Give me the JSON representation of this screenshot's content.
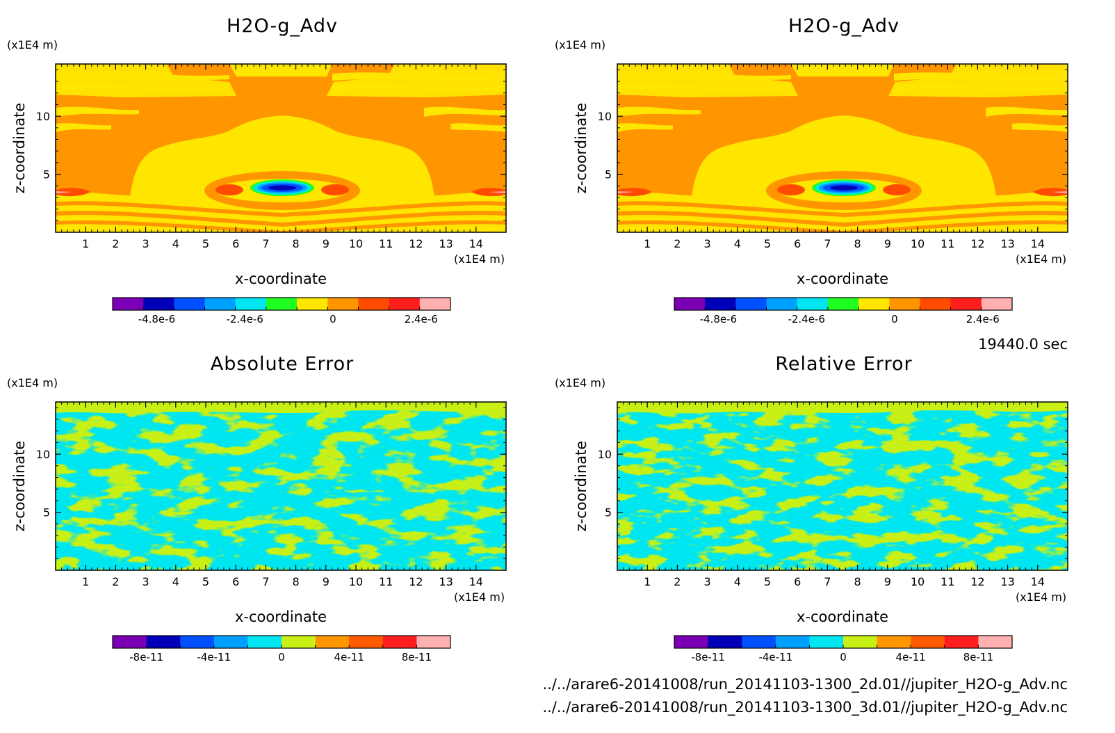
{
  "chart_data": [
    {
      "type": "heatmap",
      "panel": "top-left",
      "title": "H2O-g_Adv",
      "xlabel": "x-coordinate",
      "ylabel": "z-coordinate",
      "x_unit": "(x1E4 m)",
      "y_unit": "(x1E4 m)",
      "x_ticks": [
        "1",
        "2",
        "3",
        "4",
        "5",
        "6",
        "7",
        "8",
        "9",
        "10",
        "11",
        "12",
        "13",
        "14"
      ],
      "y_ticks": [
        "5",
        "10"
      ],
      "xlim": [
        0,
        15
      ],
      "ylim": [
        0,
        14.5
      ],
      "colorbar": {
        "colors": [
          "#7B00B5",
          "#0000B8",
          "#0050FF",
          "#00A0FF",
          "#00E6F0",
          "#20FF20",
          "#FFE600",
          "#FF9600",
          "#FF4B00",
          "#FF1E1E",
          "#FFB0B0"
        ],
        "tick_labels": [
          "-4.8e-6",
          "-2.4e-6",
          "0",
          "2.4e-6"
        ],
        "tick_values": [
          -4.8e-06,
          -2.4e-06,
          0,
          2.4e-06
        ],
        "range": [
          -6e-06,
          3.2e-06
        ]
      },
      "field_regions": [
        {
          "description": "background advection tendency",
          "value_range": [
            0,
            8e-07
          ]
        },
        {
          "description": "negative core centered near x=7.6, z=4.0",
          "min_value": -4.8e-06
        },
        {
          "description": "positive lobes near x=5.8 and x=9.4 at z=4.0",
          "max_value": 1.6e-06
        }
      ]
    },
    {
      "type": "heatmap",
      "panel": "top-right",
      "title": "H2O-g_Adv",
      "xlabel": "x-coordinate",
      "ylabel": "z-coordinate",
      "x_unit": "(x1E4 m)",
      "y_unit": "(x1E4 m)",
      "x_ticks": [
        "1",
        "2",
        "3",
        "4",
        "5",
        "6",
        "7",
        "8",
        "9",
        "10",
        "11",
        "12",
        "13",
        "14"
      ],
      "y_ticks": [
        "5",
        "10"
      ],
      "xlim": [
        0,
        15
      ],
      "ylim": [
        0,
        14.5
      ],
      "colorbar": {
        "colors": [
          "#7B00B5",
          "#0000B8",
          "#0050FF",
          "#00A0FF",
          "#00E6F0",
          "#20FF20",
          "#FFE600",
          "#FF9600",
          "#FF4B00",
          "#FF1E1E",
          "#FFB0B0"
        ],
        "tick_labels": [
          "-4.8e-6",
          "-2.4e-6",
          "0",
          "2.4e-6"
        ],
        "tick_values": [
          -4.8e-06,
          -2.4e-06,
          0,
          2.4e-06
        ],
        "range": [
          -6e-06,
          3.2e-06
        ]
      }
    },
    {
      "type": "heatmap",
      "panel": "bottom-left",
      "title": "Absolute Error",
      "xlabel": "x-coordinate",
      "ylabel": "z-coordinate",
      "x_unit": "(x1E4 m)",
      "y_unit": "(x1E4 m)",
      "x_ticks": [
        "1",
        "2",
        "3",
        "4",
        "5",
        "6",
        "7",
        "8",
        "9",
        "10",
        "11",
        "12",
        "13",
        "14"
      ],
      "y_ticks": [
        "5",
        "10"
      ],
      "xlim": [
        0,
        15
      ],
      "ylim": [
        0,
        14.5
      ],
      "colorbar": {
        "colors": [
          "#7B00B5",
          "#0000B8",
          "#0050FF",
          "#00A0FF",
          "#00E6F0",
          "#C8F014",
          "#FF9600",
          "#FF5A00",
          "#FF1E1E",
          "#FFB0B0"
        ],
        "tick_labels": [
          "-8e-11",
          "-4e-11",
          "0",
          "4e-11",
          "8e-11"
        ],
        "tick_values": [
          -8e-11,
          -4e-11,
          0,
          4e-11,
          8e-11
        ],
        "range": [
          -1e-10,
          1e-10
        ]
      },
      "field_regions": [
        {
          "description": "noise alternating between the two central bins",
          "value_range": [
            -2e-11,
            2e-11
          ]
        }
      ]
    },
    {
      "type": "heatmap",
      "panel": "bottom-right",
      "title": "Relative Error",
      "xlabel": "x-coordinate",
      "ylabel": "z-coordinate",
      "x_unit": "(x1E4 m)",
      "y_unit": "(x1E4 m)",
      "x_ticks": [
        "1",
        "2",
        "3",
        "4",
        "5",
        "6",
        "7",
        "8",
        "9",
        "10",
        "11",
        "12",
        "13",
        "14"
      ],
      "y_ticks": [
        "5",
        "10"
      ],
      "xlim": [
        0,
        15
      ],
      "ylim": [
        0,
        14.5
      ],
      "colorbar": {
        "colors": [
          "#7B00B5",
          "#0000B8",
          "#0050FF",
          "#00A0FF",
          "#00E6F0",
          "#C8F014",
          "#FF9600",
          "#FF5A00",
          "#FF1E1E",
          "#FFB0B0"
        ],
        "tick_labels": [
          "-8e-11",
          "-4e-11",
          "0",
          "4e-11",
          "8e-11"
        ],
        "tick_values": [
          -8e-11,
          -4e-11,
          0,
          4e-11,
          8e-11
        ],
        "range": [
          -1e-10,
          1e-10
        ]
      }
    }
  ],
  "info": {
    "time": "19440.0 sec",
    "file1": "../../arare6-20141008/run_20141103-1300_2d.01//jupiter_H2O-g_Adv.nc",
    "file2": "../../arare6-20141008/run_20141103-1300_3d.01//jupiter_H2O-g_Adv.nc"
  }
}
